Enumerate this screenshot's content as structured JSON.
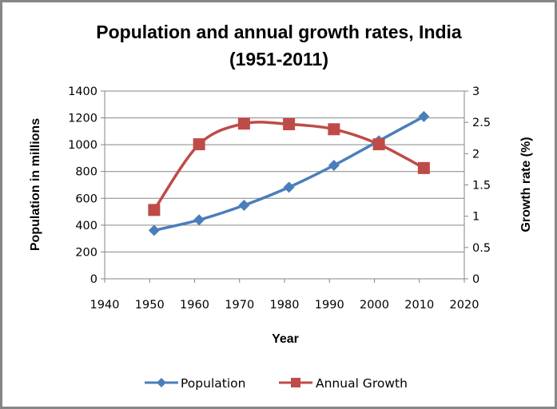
{
  "chart_data": {
    "type": "line",
    "title": "Population and annual growth rates, India",
    "subtitle": "(1951-2011)",
    "xlabel": "Year",
    "ylabel": "Population in millions",
    "y2label": "Growth rate (%)",
    "xlim": [
      1940,
      2020
    ],
    "ylim": [
      0,
      1400
    ],
    "y2lim": [
      0,
      3
    ],
    "xticks": [
      "1940",
      "1950",
      "1960",
      "1970",
      "1980",
      "1990",
      "2000",
      "2010",
      "2020"
    ],
    "yticks": [
      "0",
      "200",
      "400",
      "600",
      "800",
      "1000",
      "1200",
      "1400"
    ],
    "y2ticks": [
      "0",
      "0.5",
      "1",
      "1.5",
      "2",
      "2.5",
      "3"
    ],
    "grid": true,
    "legend_position": "bottom",
    "x": [
      1951,
      1961,
      1971,
      1981,
      1991,
      2001,
      2011
    ],
    "series": [
      {
        "name": "Population",
        "axis": "left",
        "color": "#4a7ebb",
        "marker": "diamond",
        "smooth": true,
        "values": [
          361,
          439,
          548,
          683,
          846,
          1029,
          1210
        ]
      },
      {
        "name": "Annual Growth",
        "axis": "right",
        "color": "#be4b48",
        "marker": "square",
        "smooth": true,
        "values": [
          1.1,
          2.15,
          2.48,
          2.47,
          2.39,
          2.15,
          1.77
        ]
      }
    ]
  },
  "colors": {
    "gridline": "#868686",
    "border": "#868686"
  }
}
